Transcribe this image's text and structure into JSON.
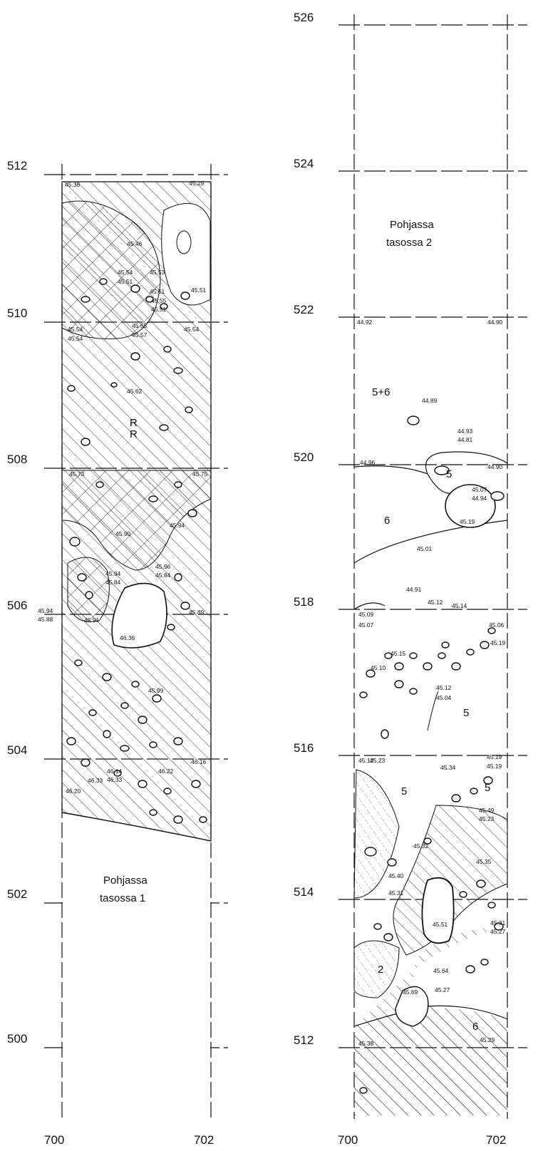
{
  "left_panel": {
    "y_labels": [
      "512",
      "510",
      "508",
      "506",
      "504",
      "502",
      "500"
    ],
    "x_labels": [
      "700",
      "702"
    ],
    "note_line1": "Pohjassa",
    "note_line2": "tasossa 1",
    "markers": [
      "R",
      "R"
    ],
    "elevations": [
      "45.36",
      "45.29",
      "45.46",
      "45.54",
      "45.53",
      "45.51",
      "45.51",
      "45.54",
      "45.55",
      "45.51",
      "45.51",
      "45.54",
      "45.65",
      "45.57",
      "45.54",
      "45.62",
      "45.73",
      "45.75",
      "45.90",
      "45.94",
      "45.96",
      "45.84",
      "45.94",
      "45.84",
      "46.36",
      "45.91",
      "45.99",
      "45.89",
      "46.14",
      "46.33",
      "46.22",
      "46.16",
      "46.20",
      "46.33",
      "45.94",
      "45.88"
    ]
  },
  "right_panel": {
    "y_labels": [
      "526",
      "524",
      "522",
      "520",
      "518",
      "516",
      "514",
      "512"
    ],
    "x_labels": [
      "700",
      "702"
    ],
    "note_line1": "Pohjassa",
    "note_line2": "tasossa 2",
    "layer_numbers": [
      "5+6",
      "5",
      "6",
      "5",
      "5",
      "5",
      "2",
      "6"
    ],
    "elevations": [
      "44.92",
      "44.90",
      "44.89",
      "44.93",
      "44.81",
      "44.96",
      "44.90",
      "45.07",
      "44.94",
      "45.19",
      "45.01",
      "44.91",
      "45.09",
      "45.12",
      "45.07",
      "45.14",
      "45.10",
      "45.06",
      "45.19",
      "45.15",
      "45.12",
      "45.04",
      "45.12",
      "45.23",
      "45.19",
      "45.19",
      "45.34",
      "45.49",
      "45.23",
      "45.32",
      "45.35",
      "45.40",
      "45.31",
      "45.51",
      "45.31",
      "45.27",
      "45.64",
      "45.69",
      "45.27",
      "45.38",
      "45.29"
    ]
  },
  "colors": {
    "ink": "#111111",
    "background": "#ffffff"
  }
}
